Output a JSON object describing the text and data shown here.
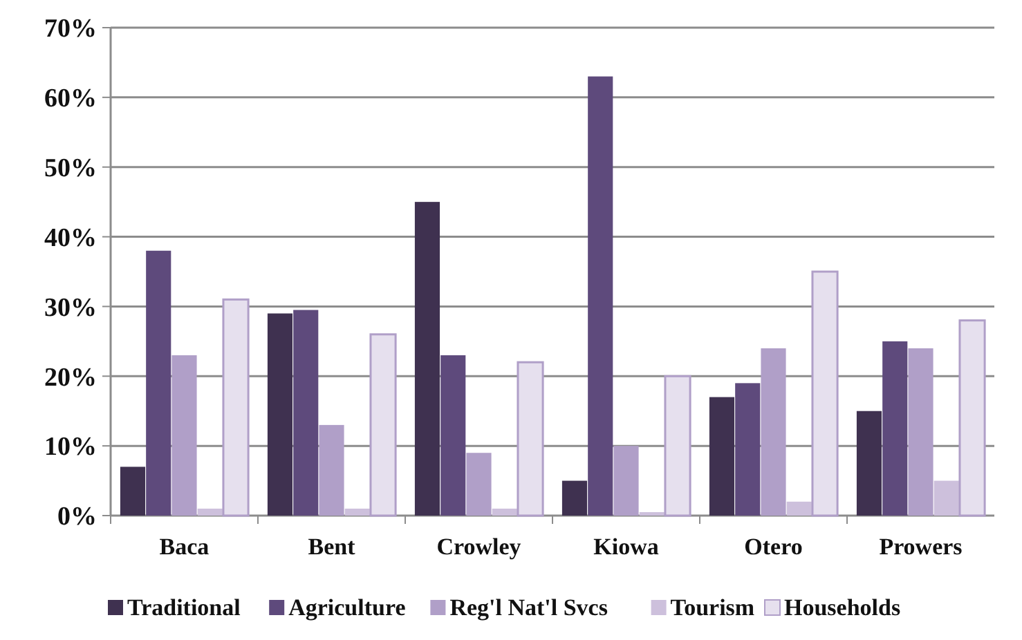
{
  "chart_data": {
    "type": "bar",
    "categories": [
      "Baca",
      "Bent",
      "Crowley",
      "Kiowa",
      "Otero",
      "Prowers"
    ],
    "series": [
      {
        "name": "Traditional",
        "color": "#3f3150",
        "values": [
          7,
          29,
          45,
          5,
          17,
          15
        ]
      },
      {
        "name": "Agriculture",
        "color": "#5e4a7c",
        "values": [
          38,
          29.5,
          23,
          63,
          19,
          25
        ]
      },
      {
        "name": "Reg'l Nat'l Svcs",
        "color": "#b09fc8",
        "values": [
          23,
          13,
          9,
          10,
          24,
          24
        ]
      },
      {
        "name": "Tourism",
        "color": "#cdc0dc",
        "values": [
          1,
          1,
          1,
          0.5,
          2,
          5
        ]
      },
      {
        "name": "Households",
        "color": "#e6e0ee",
        "values": [
          31,
          26,
          22,
          20,
          35,
          28
        ]
      }
    ],
    "ylim": [
      0,
      70
    ],
    "yticks": [
      {
        "value": 0,
        "label": "0%"
      },
      {
        "value": 10,
        "label": "10%"
      },
      {
        "value": 20,
        "label": "20%"
      },
      {
        "value": 30,
        "label": "30%"
      },
      {
        "value": 40,
        "label": "40%"
      },
      {
        "value": 50,
        "label": "50%"
      },
      {
        "value": 60,
        "label": "60%"
      },
      {
        "value": 70,
        "label": "70%"
      }
    ],
    "grid": "y",
    "legend": "bottom"
  }
}
